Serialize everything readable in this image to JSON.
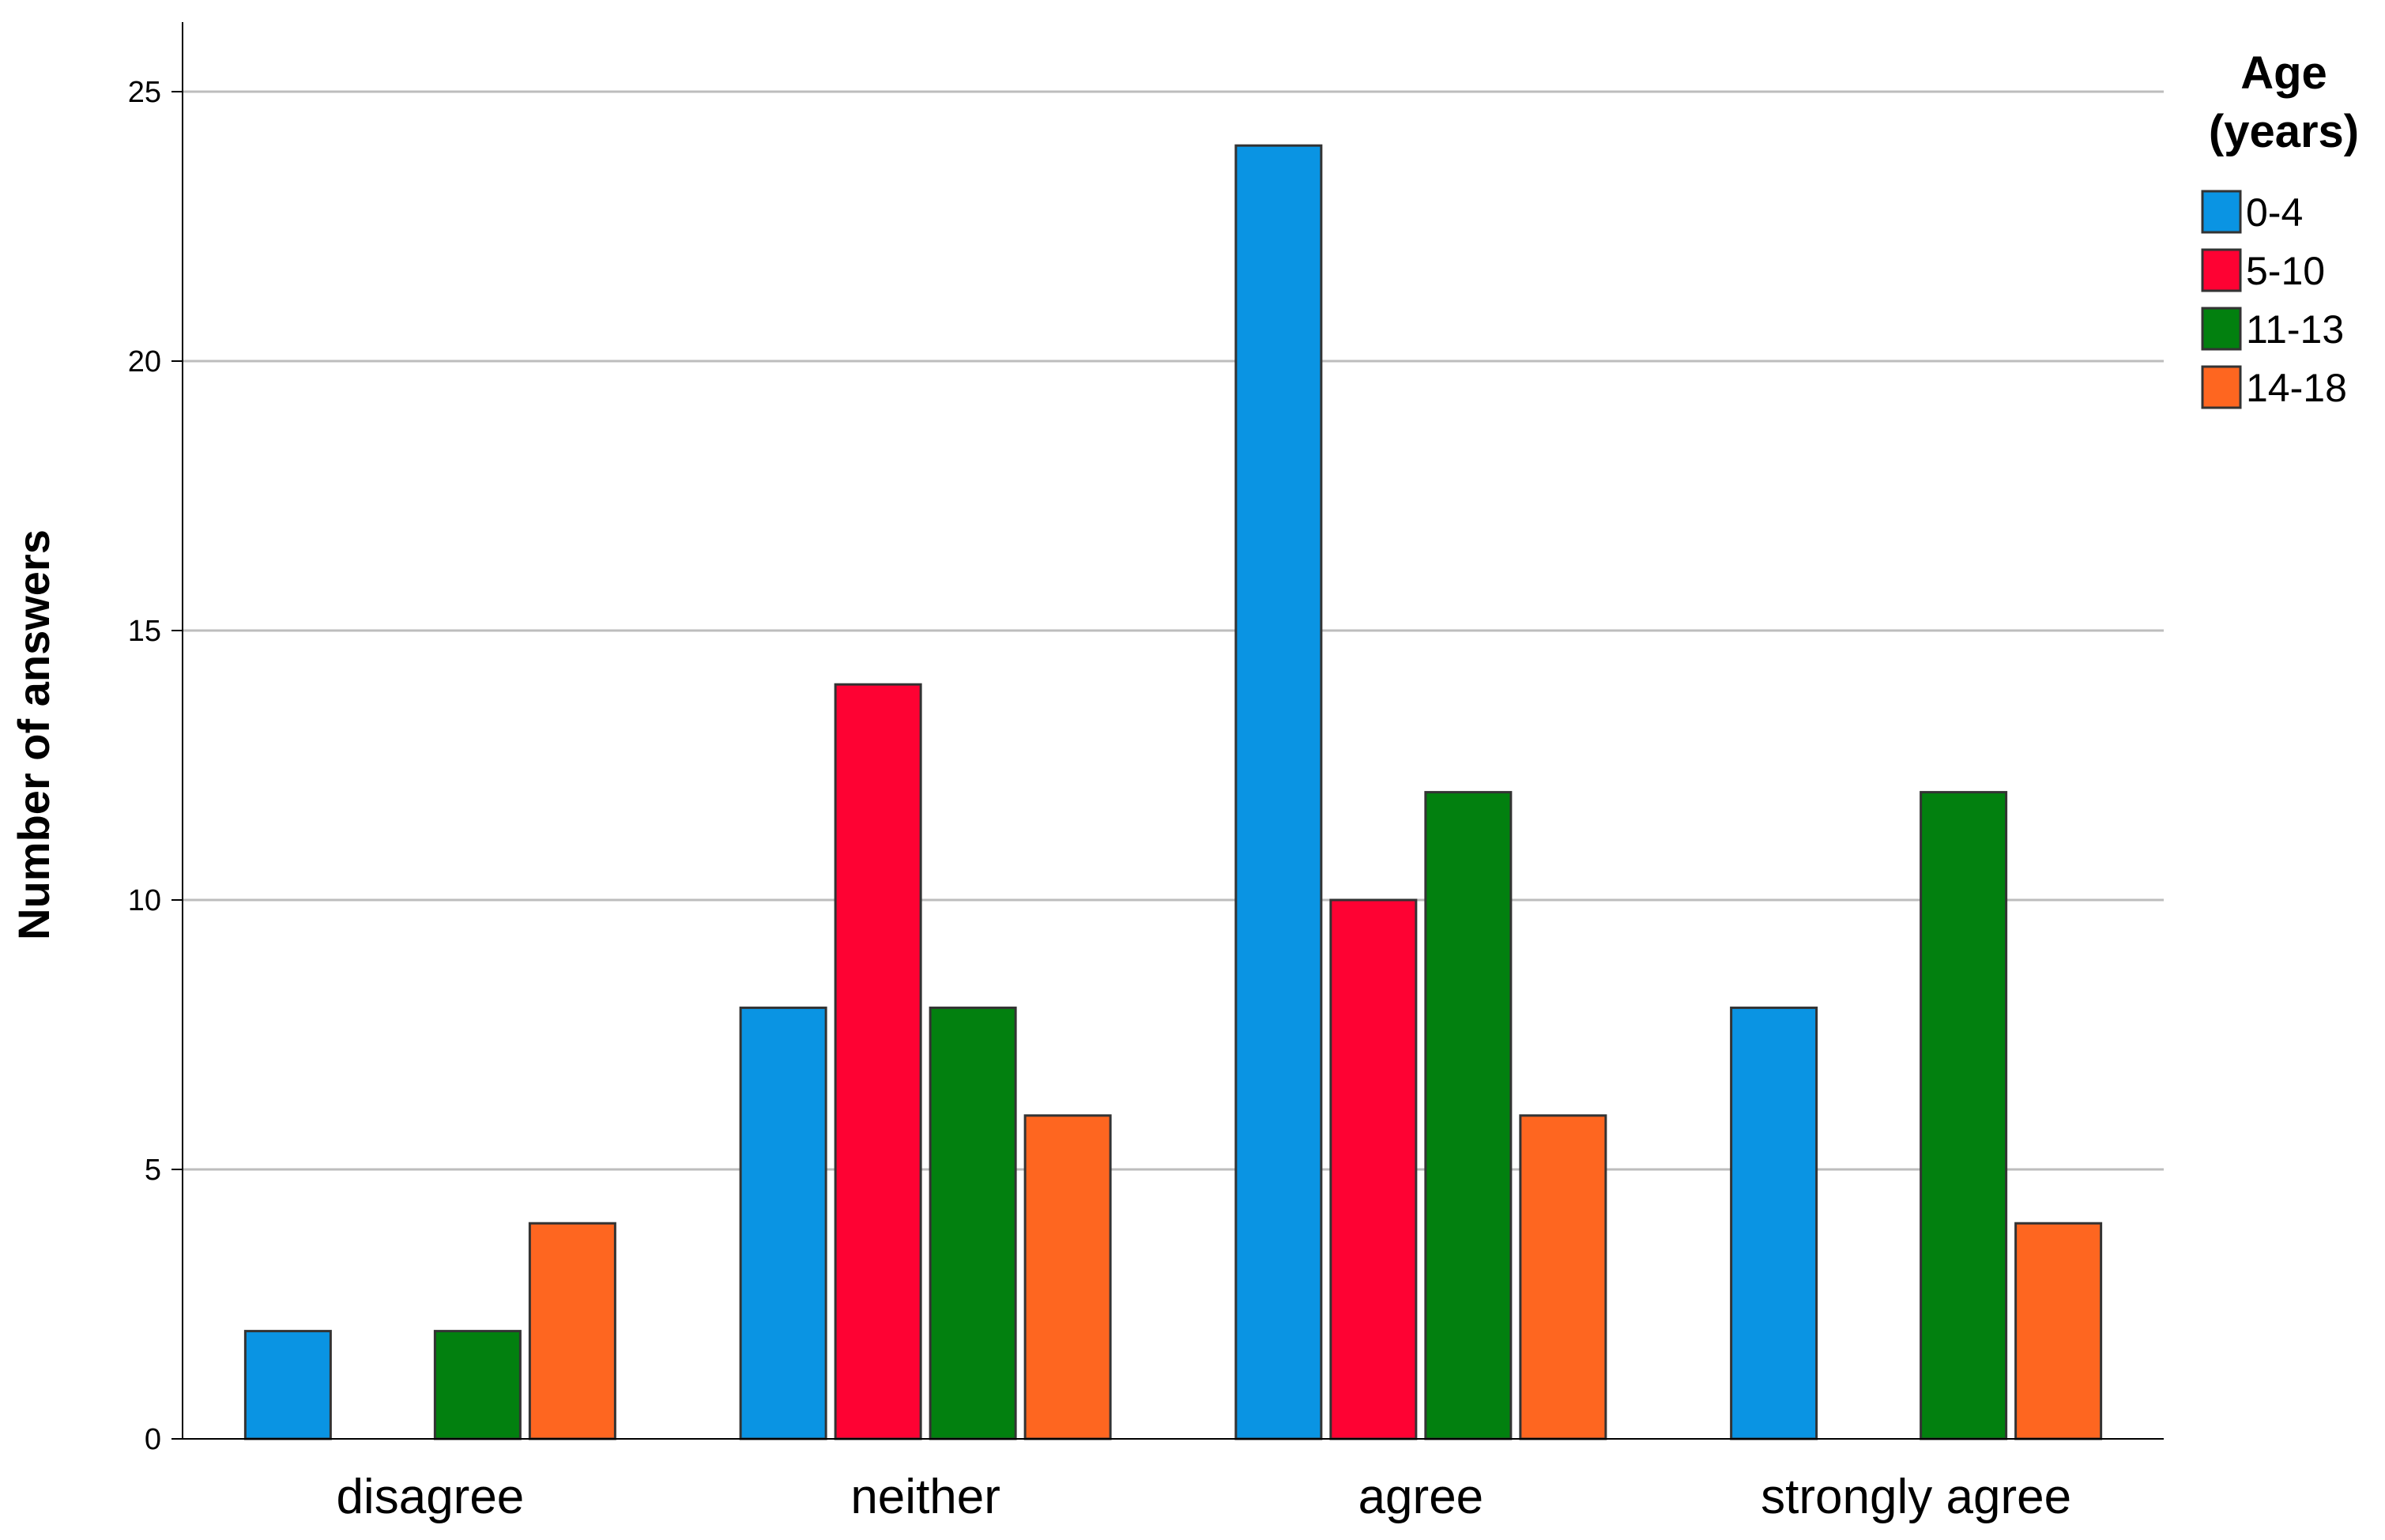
{
  "chart_data": {
    "type": "bar",
    "categories": [
      "disagree",
      "neither",
      "agree",
      "strongly agree"
    ],
    "series": [
      {
        "name": "0-4",
        "color": "#0A94E3",
        "values": [
          2,
          8,
          24,
          8
        ]
      },
      {
        "name": "5-10",
        "color": "#FE0233",
        "values": [
          0,
          14,
          10,
          0
        ]
      },
      {
        "name": "11-13",
        "color": "#02800F",
        "values": [
          2,
          8,
          12,
          12
        ]
      },
      {
        "name": "14-18",
        "color": "#FE6620",
        "values": [
          4,
          6,
          6,
          4
        ]
      }
    ],
    "ylabel": "Number of answers",
    "ylim": [
      0,
      25
    ],
    "yticks": [
      0,
      5,
      10,
      15,
      20,
      25
    ],
    "grid": true,
    "legend": {
      "title_line1": "Age",
      "title_line2": "(years)",
      "placement": "right"
    }
  }
}
